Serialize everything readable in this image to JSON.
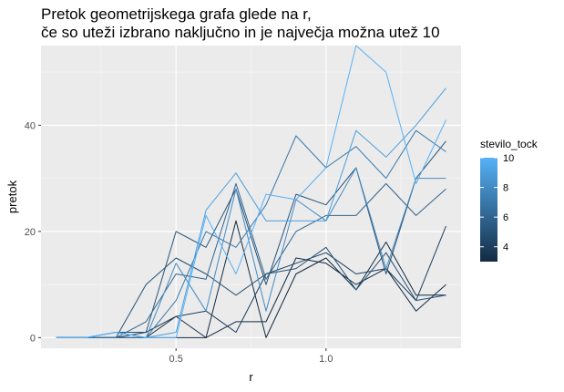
{
  "chart_data": {
    "type": "line",
    "title_lines": [
      "Pretok geometrijskega grafa glede na r,",
      "če so uteži izbrano naključno in je največja možna utež 10"
    ],
    "xlabel": "r",
    "ylabel": "pretok",
    "xlim": [
      0.05,
      1.45
    ],
    "ylim": [
      -2,
      55
    ],
    "x_ticks": [
      0.5,
      1.0
    ],
    "x_tick_labels": [
      "0.5",
      "1.0"
    ],
    "y_ticks": [
      0,
      20,
      40
    ],
    "y_tick_labels": [
      "0",
      "20",
      "40"
    ],
    "grid": true,
    "legend": {
      "title": "stevilo_tock",
      "position": "right",
      "type": "colorbar",
      "range": [
        3,
        10
      ],
      "ticks": [
        4,
        6,
        8,
        10
      ],
      "tick_labels": [
        "4",
        "6",
        "8",
        "10"
      ],
      "color_low": "#132B43",
      "color_high": "#56B1F7"
    },
    "x": [
      0.1,
      0.2,
      0.3,
      0.4,
      0.5,
      0.6,
      0.7,
      0.8,
      0.9,
      1.0,
      1.1,
      1.2,
      1.3,
      1.4
    ],
    "series": [
      {
        "stevilo_tock": 3,
        "values": [
          0,
          0,
          0,
          0,
          0,
          0,
          3,
          3,
          15,
          14,
          10,
          13,
          5,
          10
        ]
      },
      {
        "stevilo_tock": 3,
        "values": [
          0,
          0,
          0,
          0,
          4,
          0,
          22,
          0,
          12,
          15,
          9,
          18,
          8,
          8
        ]
      },
      {
        "stevilo_tock": 4,
        "values": [
          0,
          0,
          0,
          1,
          4,
          5,
          1,
          12,
          14,
          16,
          12,
          13,
          7,
          21
        ]
      },
      {
        "stevilo_tock": 5,
        "values": [
          0,
          0,
          0,
          10,
          15,
          12,
          8,
          12,
          13,
          17,
          9,
          16,
          7,
          8
        ]
      },
      {
        "stevilo_tock": 5,
        "values": [
          0,
          0,
          1,
          1,
          20,
          17,
          28,
          10,
          27,
          25,
          32,
          12,
          30,
          37
        ]
      },
      {
        "stevilo_tock": 6,
        "values": [
          0,
          0,
          0,
          3,
          12,
          11,
          29,
          11,
          20,
          23,
          23,
          29,
          23,
          28
        ]
      },
      {
        "stevilo_tock": 7,
        "values": [
          0,
          0,
          0,
          0,
          7,
          20,
          17,
          25,
          38,
          32,
          36,
          30,
          39,
          35
        ]
      },
      {
        "stevilo_tock": 8,
        "values": [
          0,
          0,
          1,
          0,
          14,
          5,
          28,
          5,
          26,
          22,
          32,
          13,
          30,
          30
        ]
      },
      {
        "stevilo_tock": 9,
        "values": [
          0,
          0,
          1,
          0,
          1,
          24,
          31,
          22,
          22,
          22,
          39,
          34,
          40,
          47
        ]
      },
      {
        "stevilo_tock": 10,
        "values": [
          0,
          0,
          1,
          0,
          0,
          23,
          12,
          27,
          26,
          32,
          55,
          50,
          29,
          41
        ]
      }
    ]
  }
}
